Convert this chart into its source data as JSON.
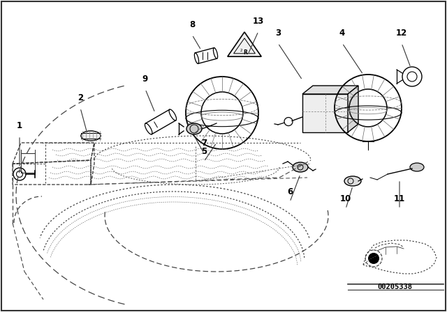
{
  "bg_color": "#ffffff",
  "border_color": "#000000",
  "diagram_id": "00205338",
  "draw_color": "#000000",
  "light_gray": "#aaaaaa",
  "mid_gray": "#666666",
  "fig_w": 6.4,
  "fig_h": 4.48,
  "dpi": 100
}
